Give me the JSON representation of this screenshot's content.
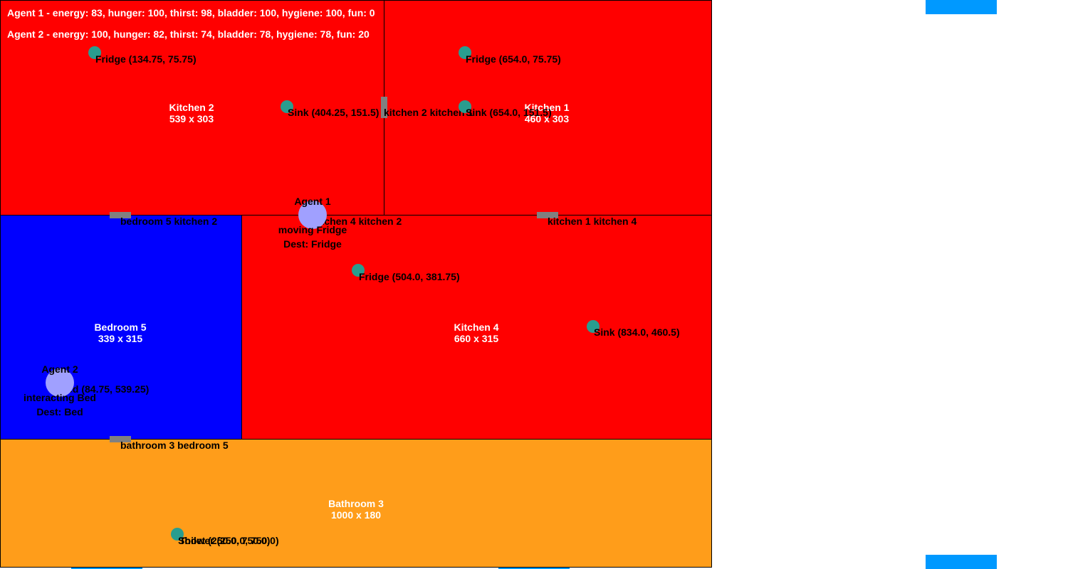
{
  "colors": {
    "kitchen": "#ff0000",
    "bedroom": "#0000ff",
    "bathroom": "#ff9d1a",
    "window": "#0099ff",
    "door": "#808080",
    "object": "#2a9d8f",
    "agent": "#a0a0ff"
  },
  "status": [
    "Agent 1 - energy: 83, hunger: 100, thirst: 98, bladder: 100, hygiene: 100, fun: 0",
    "Agent 2 - energy: 100, hunger: 82, thirst: 74, bladder: 78, hygiene: 78, fun: 20"
  ],
  "rooms": {
    "kitchen2": {
      "name": "Kitchen 2",
      "size": "539 x 303"
    },
    "kitchen1": {
      "name": "Kitchen 1",
      "size": "460 x 303"
    },
    "bedroom5": {
      "name": "Bedroom 5",
      "size": "339 x 315"
    },
    "kitchen4": {
      "name": "Kitchen 4",
      "size": "660 x 315"
    },
    "bathroom3": {
      "name": "Bathroom 3",
      "size": "1000 x 180"
    }
  },
  "doors": {
    "bedroom5_kitchen2": "bedroom 5 kitchen 2",
    "kitchen4_kitchen2": "kitchen 4 kitchen 2",
    "kitchen1_kitchen4": "kitchen 1 kitchen 4",
    "kitchen2_kitchen1": "kitchen 2 kitchen 1",
    "bathroom3_bedroom5": "bathroom 3 bedroom 5"
  },
  "objects": {
    "fridge_k2": "Fridge (134.75, 75.75)",
    "sink_k2": "Sink (404.25, 151.5)",
    "fridge_k1": "Fridge (654.0, 75.75)",
    "sink_k1": "Sink (654.0, 151.5)",
    "fridge_k4": "Fridge (504.0, 381.75)",
    "sink_k4": "Sink (834.0, 460.5)",
    "bed_b5": "Bed (84.75, 539.25)",
    "shower_b3": "Shower (250.0, 750.0)",
    "toilet_b3": "Toilet (250.0, 750.0)"
  },
  "agents": {
    "agent1": {
      "name": "Agent 1",
      "action": "moving Fridge",
      "dest": "Dest: Fridge"
    },
    "agent2": {
      "name": "Agent 2",
      "action": "interacting Bed",
      "dest": "Dest: Bed"
    }
  }
}
